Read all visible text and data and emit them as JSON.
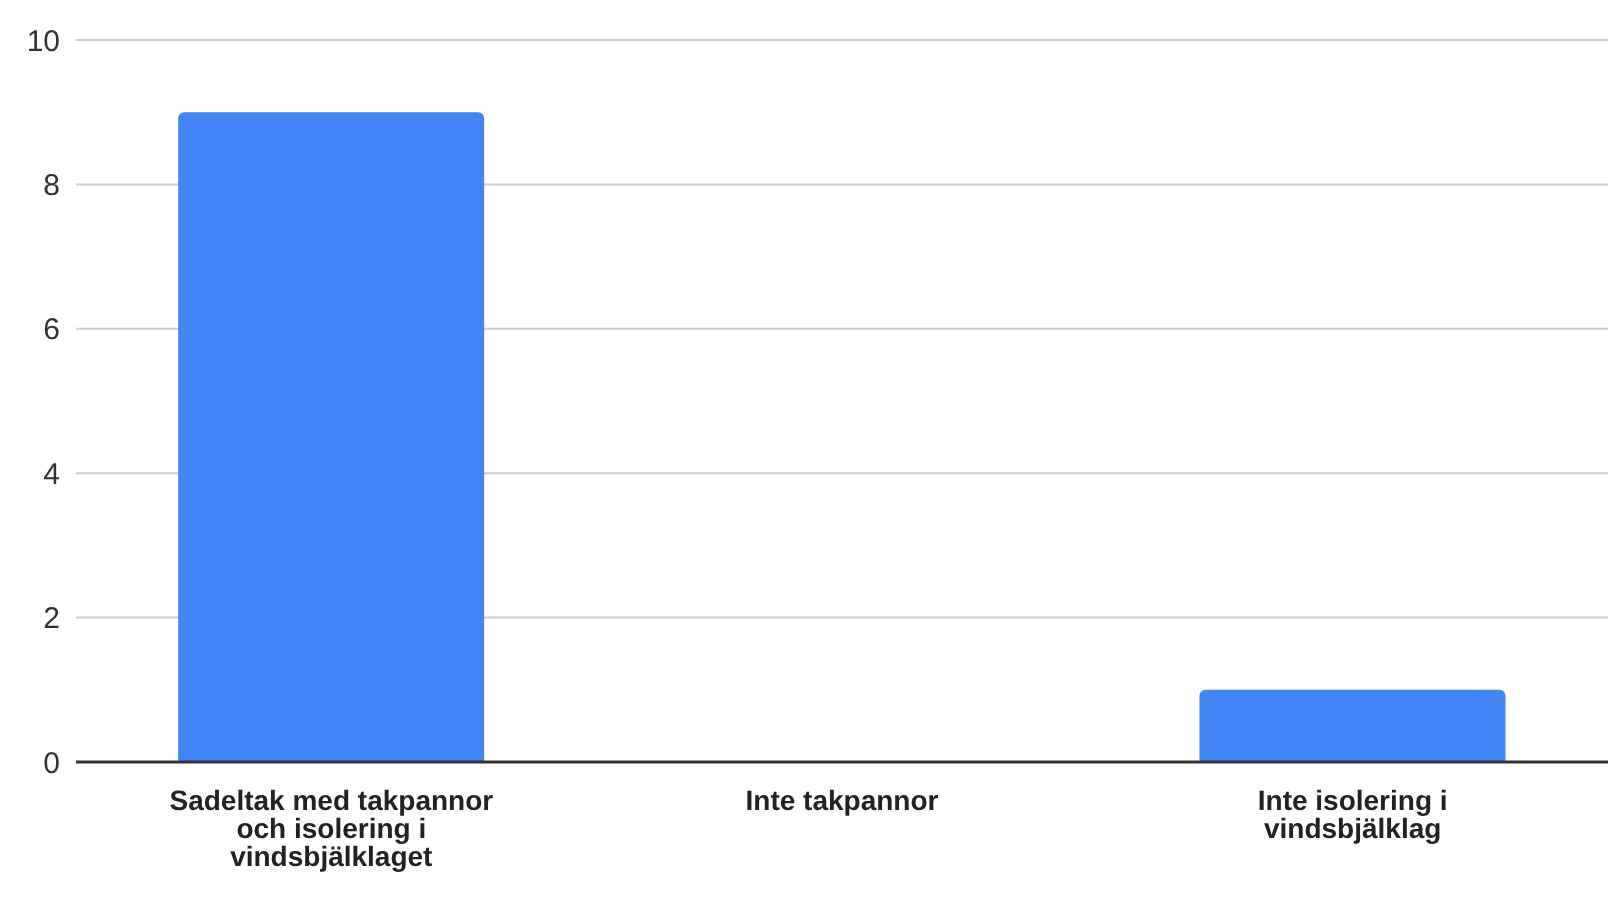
{
  "chart_data": {
    "type": "bar",
    "categories": [
      "Sadeltak med takpannor och isolering i vindsbjälklaget",
      "Inte takpannor",
      "Inte isolering i vindsbjälklag"
    ],
    "values": [
      9,
      0,
      1
    ],
    "color": "#4285f4",
    "ylim": [
      0,
      10
    ],
    "yticks": [
      0,
      2,
      4,
      6,
      8,
      10
    ],
    "grid": "y"
  }
}
